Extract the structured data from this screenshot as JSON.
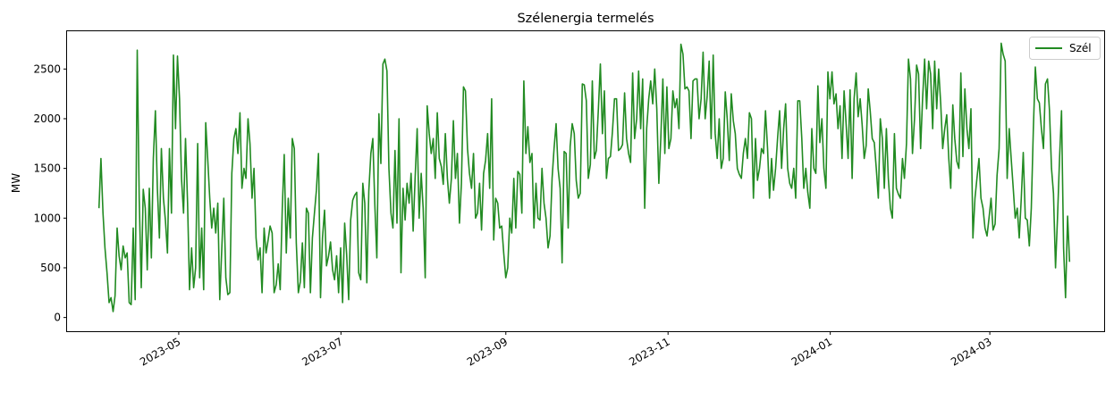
{
  "chart_data": {
    "type": "line",
    "title": "Szélenergia termelés",
    "xlabel": "",
    "ylabel": "MW",
    "x_range": [
      "2023-03-20",
      "2024-04-13"
    ],
    "ylim": [
      -138,
      2880
    ],
    "y_ticks": [
      0,
      500,
      1000,
      1500,
      2000,
      2500
    ],
    "x_ticks": [
      "2023-05",
      "2023-07",
      "2023-09",
      "2023-11",
      "2024-01",
      "2024-03"
    ],
    "grid": false,
    "legend": {
      "position": "top-right",
      "entries": [
        "Szél"
      ]
    },
    "series": [
      {
        "name": "Szél",
        "color": "#228b22",
        "x_start": "2023-04-01",
        "x_end": "2024-03-31",
        "values": [
          1100,
          1600,
          1050,
          700,
          450,
          150,
          200,
          60,
          220,
          900,
          620,
          480,
          720,
          600,
          650,
          150,
          130,
          900,
          180,
          2690,
          1200,
          300,
          1290,
          1100,
          480,
          1300,
          600,
          1600,
          2080,
          1300,
          800,
          1700,
          1200,
          980,
          650,
          1700,
          1050,
          2640,
          1900,
          2630,
          2200,
          1400,
          1050,
          1800,
          1150,
          280,
          700,
          300,
          500,
          1750,
          400,
          900,
          280,
          1960,
          1600,
          1200,
          900,
          1100,
          850,
          1150,
          180,
          700,
          1200,
          400,
          230,
          250,
          1450,
          1800,
          1900,
          1650,
          2060,
          1300,
          1500,
          1400,
          2000,
          1750,
          1200,
          1500,
          800,
          580,
          700,
          250,
          900,
          650,
          780,
          920,
          850,
          250,
          330,
          540,
          280,
          1090,
          1640,
          650,
          1200,
          800,
          1800,
          1700,
          750,
          250,
          360,
          750,
          300,
          1100,
          1050,
          250,
          800,
          1050,
          1280,
          1650,
          200,
          800,
          1080,
          520,
          620,
          760,
          480,
          380,
          620,
          250,
          700,
          150,
          950,
          640,
          180,
          980,
          1180,
          1230,
          1260,
          450,
          380,
          1350,
          1150,
          350,
          1270,
          1650,
          1800,
          1120,
          600,
          2050,
          1550,
          2550,
          2600,
          2480,
          1500,
          1050,
          900,
          1680,
          950,
          2000,
          450,
          1300,
          980,
          1350,
          1150,
          1450,
          870,
          1400,
          1900,
          1000,
          1450,
          1100,
          400,
          2130,
          1850,
          1650,
          1800,
          1400,
          2060,
          1600,
          1520,
          1340,
          1850,
          1400,
          1150,
          1400,
          1980,
          1400,
          1650,
          950,
          1350,
          2320,
          2280,
          1700,
          1450,
          1300,
          1650,
          1000,
          1050,
          1350,
          880,
          1450,
          1580,
          1850,
          1300,
          2200,
          780,
          1200,
          1150,
          900,
          920,
          650,
          400,
          500,
          1000,
          850,
          1400,
          900,
          1470,
          1440,
          1050,
          2380,
          1650,
          1920,
          1560,
          1650,
          900,
          1350,
          1000,
          980,
          1500,
          1150,
          1000,
          700,
          820,
          1400,
          1700,
          1950,
          1500,
          1300,
          550,
          1670,
          1650,
          900,
          1720,
          1950,
          1850,
          1380,
          1200,
          1250,
          2350,
          2340,
          2180,
          1400,
          1540,
          2380,
          1600,
          1680,
          2100,
          2550,
          1850,
          2280,
          1400,
          1600,
          1620,
          1870,
          2200,
          2200,
          1680,
          1700,
          1740,
          2260,
          1800,
          1650,
          1560,
          2460,
          1800,
          2000,
          2480,
          1900,
          2400,
          1100,
          1900,
          2200,
          2380,
          2150,
          2500,
          2100,
          1350,
          1800,
          2400,
          1650,
          2320,
          1700,
          1800,
          2280,
          2110,
          2200,
          1900,
          2750,
          2650,
          2300,
          2320,
          2280,
          1800,
          2380,
          2400,
          2400,
          2000,
          2200,
          2670,
          2000,
          2220,
          2580,
          1800,
          2640,
          1850,
          1600,
          2000,
          1500,
          1600,
          2270,
          2000,
          1580,
          2250,
          1980,
          1850,
          1500,
          1440,
          1400,
          1650,
          1800,
          1600,
          2060,
          2000,
          1200,
          1800,
          1380,
          1500,
          1700,
          1650,
          2080,
          1700,
          1200,
          1600,
          1280,
          1500,
          1800,
          2080,
          1500,
          1900,
          2150,
          1500,
          1350,
          1300,
          1500,
          1200,
          2180,
          2180,
          1800,
          1300,
          1500,
          1260,
          1100,
          1900,
          1500,
          1450,
          2330,
          1760,
          2000,
          1500,
          1300,
          2470,
          2200,
          2470,
          2150,
          2250,
          1900,
          2130,
          1600,
          2280,
          1960,
          1600,
          2290,
          1400,
          2200,
          2460,
          2020,
          2200,
          1940,
          1600,
          1730,
          2300,
          2080,
          1800,
          1760,
          1500,
          1200,
          2000,
          1800,
          1300,
          1900,
          1400,
          1100,
          1000,
          1850,
          1300,
          1240,
          1200,
          1600,
          1400,
          1750,
          2600,
          2400,
          1650,
          2000,
          2540,
          2450,
          1700,
          2200,
          2600,
          2100,
          2580,
          2450,
          1900,
          2580,
          2100,
          2500,
          2150,
          1700,
          1900,
          2040,
          1600,
          1300,
          2140,
          1800,
          1570,
          1500,
          2460,
          1620,
          2300,
          1900,
          1700,
          2100,
          800,
          1200,
          1400,
          1600,
          1200,
          1100,
          900,
          820,
          1000,
          1200,
          880,
          940,
          1430,
          1700,
          2760,
          2650,
          2580,
          1400,
          1900,
          1600,
          1300,
          1000,
          1100,
          800,
          1200,
          1660,
          1000,
          980,
          720,
          1100,
          1900,
          2520,
          2200,
          2160,
          1900,
          1700,
          2350,
          2400,
          2090,
          1500,
          1250,
          500,
          1000,
          1600,
          2080,
          700,
          200,
          1020,
          560
        ]
      }
    ]
  }
}
